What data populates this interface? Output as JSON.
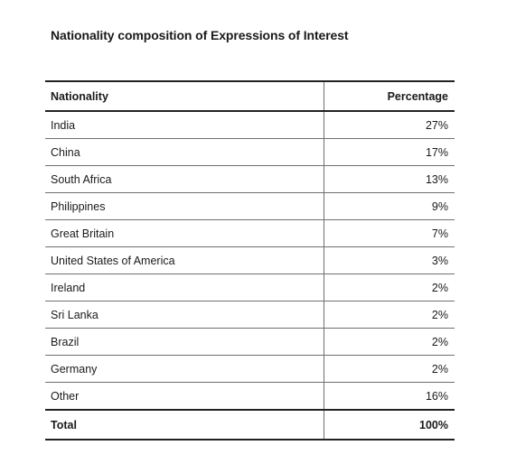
{
  "title": "Nationality composition of Expressions of Interest",
  "table": {
    "headers": [
      "Nationality",
      "Percentage"
    ],
    "rows": [
      {
        "nationality": "India",
        "percentage": "27%"
      },
      {
        "nationality": "China",
        "percentage": "17%"
      },
      {
        "nationality": "South Africa",
        "percentage": "13%"
      },
      {
        "nationality": "Philippines",
        "percentage": "9%"
      },
      {
        "nationality": "Great Britain",
        "percentage": "7%"
      },
      {
        "nationality": "United States of America",
        "percentage": "3%"
      },
      {
        "nationality": "Ireland",
        "percentage": "2%"
      },
      {
        "nationality": "Sri Lanka",
        "percentage": "2%"
      },
      {
        "nationality": "Brazil",
        "percentage": "2%"
      },
      {
        "nationality": "Germany",
        "percentage": "2%"
      },
      {
        "nationality": "Other",
        "percentage": "16%"
      }
    ],
    "total": {
      "label": "Total",
      "percentage": "100%"
    }
  }
}
